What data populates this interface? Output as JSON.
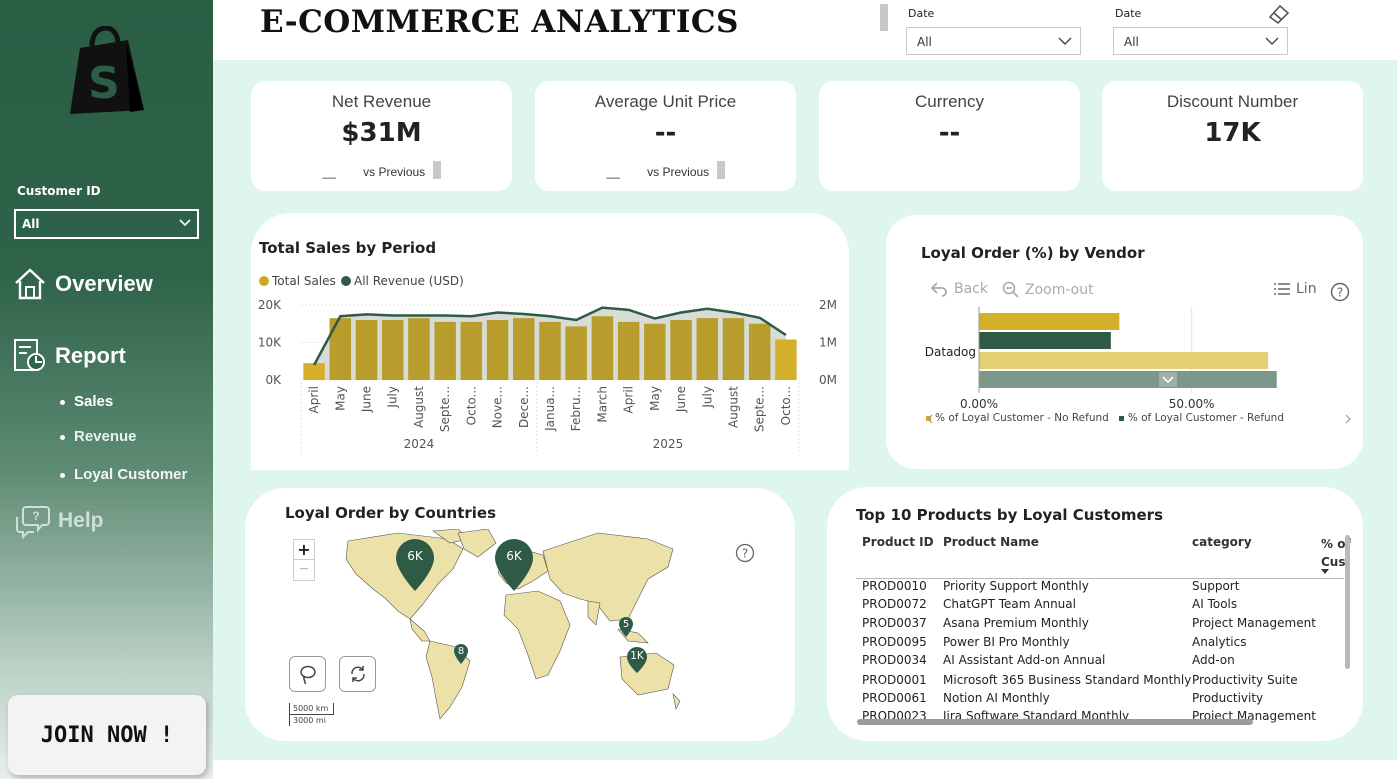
{
  "sidebar": {
    "customer_label": "Customer ID",
    "customer_value": "All",
    "nav": {
      "overview": "Overview",
      "report": "Report",
      "help": "Help"
    },
    "sub_items": [
      "Sales",
      "Revenue",
      "Loyal Customer"
    ],
    "join": "JOIN NOW !"
  },
  "header": {
    "title": "E-COMMERCE ANALYTICS",
    "filters": [
      {
        "label": "Date",
        "value": "All"
      },
      {
        "label": "Date",
        "value": "All"
      }
    ]
  },
  "kpis": [
    {
      "title": "Net Revenue",
      "value": "$31M",
      "sub_value": "__",
      "sub_label": "vs Previous"
    },
    {
      "title": "Average Unit Price",
      "value": "--",
      "sub_value": "__",
      "sub_label": "vs Previous"
    },
    {
      "title": "Currency",
      "value": "--"
    },
    {
      "title": "Discount Number",
      "value": "17K"
    }
  ],
  "sales_panel": {
    "title": "Total Sales by Period",
    "legend": [
      "Total Sales",
      "All Revenue (USD)"
    ]
  },
  "vendor_panel": {
    "title": "Loyal Order (%) by Vendor",
    "back": "Back",
    "zoom_out": "Zoom-out",
    "lin": "Lin",
    "category": "Datadog",
    "ticks": [
      "0.00%",
      "50.00%"
    ],
    "legend": [
      "% of Loyal Customer - No Refund",
      "% of Loyal Customer - Refund"
    ]
  },
  "map_panel": {
    "title": "Loyal Order by Countries",
    "zoom_in": "+",
    "zoom_out": "−",
    "markers": [
      "6K",
      "6K",
      "5",
      "8",
      "1K"
    ],
    "scale_km": "5000 km",
    "scale_mi": "3000 mi"
  },
  "products_panel": {
    "title": "Top 10 Products by Loyal Customers",
    "columns": [
      "Product ID",
      "Product Name",
      "category",
      "% of Cus"
    ],
    "rows": [
      [
        "PROD0010",
        "Priority Support Monthly",
        "Support"
      ],
      [
        "PROD0072",
        "ChatGPT Team Annual",
        "AI Tools"
      ],
      [
        "PROD0037",
        "Asana Premium Monthly",
        "Project Management"
      ],
      [
        "PROD0095",
        "Power BI Pro Monthly",
        "Analytics"
      ],
      [
        "PROD0034",
        "AI Assistant Add-on Annual",
        "Add-on"
      ],
      [
        "PROD0001",
        "Microsoft 365 Business Standard Monthly",
        "Productivity Suite"
      ],
      [
        "PROD0061",
        "Notion AI Monthly",
        "Productivity"
      ],
      [
        "PROD0023",
        "Jira Software Standard Monthly",
        "Project Management"
      ]
    ]
  },
  "colors": {
    "sidebar": "#2a5e45",
    "gold": "#c9a824",
    "dark_green": "#2f5a45",
    "light_gold": "#e4cf74",
    "grey_green": "#7d9789",
    "background": "#dff6ee"
  },
  "chart_data": [
    {
      "type": "bar",
      "title": "Total Sales by Period",
      "categories": [
        "April",
        "May",
        "June",
        "July",
        "August",
        "Septe...",
        "Octo...",
        "Nove...",
        "Dece...",
        "Janua...",
        "Febru...",
        "March",
        "April",
        "May",
        "June",
        "July",
        "August",
        "Septe...",
        "Octo..."
      ],
      "groups": [
        {
          "label": "2024",
          "count": 9
        },
        {
          "label": "2025",
          "count": 10
        }
      ],
      "series": [
        {
          "name": "Total Sales",
          "axis": "left",
          "values": [
            4500,
            16500,
            16000,
            16000,
            16500,
            15500,
            15500,
            16000,
            16500,
            15500,
            14300,
            17000,
            15500,
            15000,
            16000,
            16500,
            16500,
            15000,
            10800
          ]
        },
        {
          "name": "All Revenue (USD)",
          "axis": "right",
          "type": "area-line",
          "values": [
            400000,
            1700000,
            1750000,
            1720000,
            1720000,
            1720000,
            1700000,
            1800000,
            1760000,
            1700000,
            1600000,
            1930000,
            1870000,
            1640000,
            1800000,
            1900000,
            1800000,
            1660000,
            1200000
          ]
        }
      ],
      "yleft_ticks": [
        "0K",
        "10K",
        "20K"
      ],
      "yright_ticks": [
        "0M",
        "1M",
        "2M"
      ],
      "yleft_lim": [
        0,
        20000
      ],
      "yright_lim": [
        0,
        2000000
      ]
    },
    {
      "type": "bar",
      "orientation": "horizontal",
      "title": "Loyal Order (%) by Vendor",
      "categories": [
        "Datadog"
      ],
      "series": [
        {
          "name": "% of Loyal Customer - No Refund",
          "values": [
            33
          ]
        },
        {
          "name": "% of Loyal Customer - Refund",
          "values": [
            31
          ]
        },
        {
          "name": "",
          "values": [
            68
          ]
        },
        {
          "name": "",
          "values": [
            70
          ]
        }
      ],
      "xlim": [
        0,
        75
      ]
    }
  ]
}
